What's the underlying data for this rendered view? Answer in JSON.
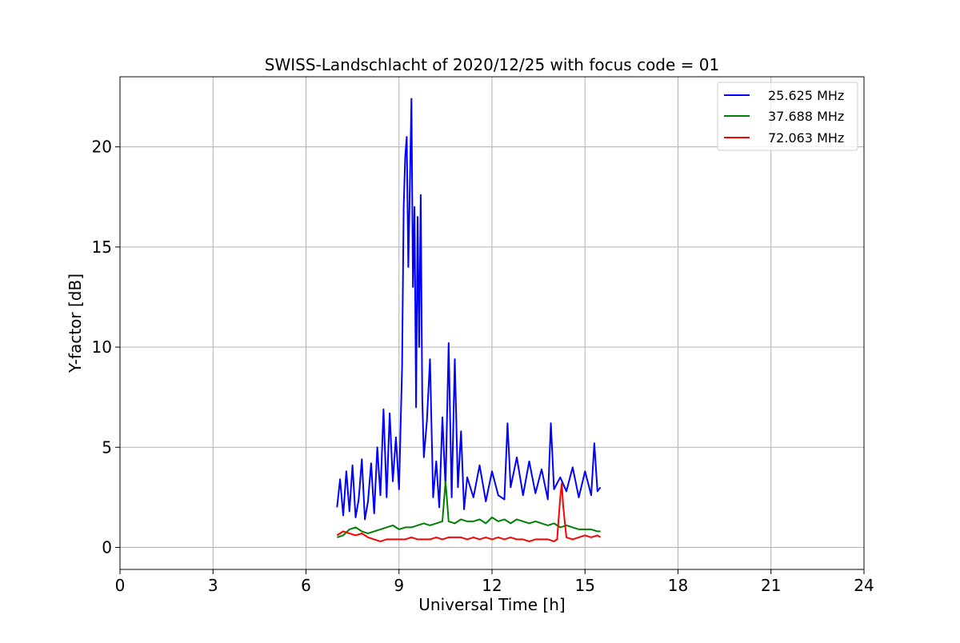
{
  "chart_data": {
    "type": "line",
    "title": "SWISS-Landschlacht of 2020/12/25 with focus code = 01",
    "xlabel": "Universal Time [h]",
    "ylabel": "Y-factor [dB]",
    "xlim": [
      0,
      24
    ],
    "ylim": [
      -1.1,
      23.5
    ],
    "xticks": [
      0,
      3,
      6,
      9,
      12,
      15,
      18,
      21,
      24
    ],
    "yticks": [
      0,
      5,
      10,
      15,
      20
    ],
    "grid": true,
    "legend_position": "top-right",
    "series": [
      {
        "name": "25.625 MHz",
        "color": "#0000ff",
        "x": [
          7.0,
          7.1,
          7.2,
          7.3,
          7.4,
          7.5,
          7.6,
          7.7,
          7.8,
          7.9,
          8.0,
          8.1,
          8.2,
          8.3,
          8.4,
          8.5,
          8.6,
          8.7,
          8.8,
          8.9,
          9.0,
          9.1,
          9.15,
          9.2,
          9.25,
          9.3,
          9.35,
          9.4,
          9.45,
          9.5,
          9.55,
          9.6,
          9.65,
          9.7,
          9.75,
          9.8,
          9.9,
          10.0,
          10.1,
          10.2,
          10.3,
          10.4,
          10.5,
          10.6,
          10.7,
          10.8,
          10.9,
          11.0,
          11.1,
          11.2,
          11.4,
          11.6,
          11.8,
          12.0,
          12.2,
          12.4,
          12.5,
          12.6,
          12.8,
          13.0,
          13.2,
          13.4,
          13.6,
          13.8,
          13.9,
          14.0,
          14.2,
          14.4,
          14.6,
          14.8,
          15.0,
          15.2,
          15.3,
          15.4,
          15.5
        ],
        "y": [
          2.0,
          3.4,
          1.6,
          3.8,
          1.8,
          4.1,
          1.5,
          2.4,
          4.4,
          1.4,
          2.3,
          4.2,
          1.7,
          5.0,
          2.6,
          6.9,
          2.5,
          6.7,
          3.3,
          5.5,
          2.9,
          9.0,
          17.0,
          19.5,
          20.5,
          14.0,
          18.0,
          22.4,
          13.0,
          17.0,
          7.0,
          16.5,
          10.0,
          17.6,
          7.5,
          4.5,
          6.3,
          9.4,
          2.5,
          4.3,
          2.0,
          6.5,
          3.0,
          10.2,
          2.5,
          9.4,
          3.0,
          5.8,
          1.9,
          3.5,
          2.5,
          4.1,
          2.3,
          3.8,
          2.6,
          2.4,
          6.2,
          3.0,
          4.5,
          2.6,
          4.3,
          2.7,
          3.9,
          2.4,
          6.2,
          2.9,
          3.5,
          2.8,
          4.0,
          2.5,
          3.8,
          2.6,
          5.2,
          2.8,
          3.0
        ]
      },
      {
        "name": "37.688 MHz",
        "color": "#008000",
        "x": [
          7.0,
          7.2,
          7.4,
          7.6,
          7.8,
          8.0,
          8.2,
          8.4,
          8.6,
          8.8,
          9.0,
          9.2,
          9.4,
          9.6,
          9.8,
          10.0,
          10.2,
          10.4,
          10.5,
          10.6,
          10.8,
          11.0,
          11.2,
          11.4,
          11.6,
          11.8,
          12.0,
          12.2,
          12.4,
          12.6,
          12.8,
          13.0,
          13.2,
          13.4,
          13.6,
          13.8,
          14.0,
          14.2,
          14.4,
          14.6,
          14.8,
          15.0,
          15.2,
          15.4,
          15.5
        ],
        "y": [
          0.5,
          0.6,
          0.9,
          1.0,
          0.8,
          0.7,
          0.8,
          0.9,
          1.0,
          1.1,
          0.9,
          1.0,
          1.0,
          1.1,
          1.2,
          1.1,
          1.2,
          1.3,
          3.3,
          1.3,
          1.2,
          1.4,
          1.3,
          1.3,
          1.4,
          1.2,
          1.5,
          1.3,
          1.4,
          1.2,
          1.4,
          1.3,
          1.2,
          1.3,
          1.2,
          1.1,
          1.2,
          1.0,
          1.1,
          1.0,
          0.9,
          0.9,
          0.9,
          0.8,
          0.8
        ]
      },
      {
        "name": "72.063 MHz",
        "color": "#ff0000",
        "x": [
          7.0,
          7.2,
          7.4,
          7.6,
          7.8,
          8.0,
          8.2,
          8.4,
          8.6,
          8.8,
          9.0,
          9.2,
          9.4,
          9.6,
          9.8,
          10.0,
          10.2,
          10.4,
          10.6,
          10.8,
          11.0,
          11.2,
          11.4,
          11.6,
          11.8,
          12.0,
          12.2,
          12.4,
          12.6,
          12.8,
          13.0,
          13.2,
          13.4,
          13.6,
          13.8,
          14.0,
          14.1,
          14.2,
          14.25,
          14.3,
          14.4,
          14.6,
          14.8,
          15.0,
          15.2,
          15.4,
          15.5
        ],
        "y": [
          0.6,
          0.8,
          0.7,
          0.6,
          0.7,
          0.5,
          0.4,
          0.3,
          0.4,
          0.4,
          0.4,
          0.4,
          0.5,
          0.4,
          0.4,
          0.4,
          0.5,
          0.4,
          0.5,
          0.5,
          0.5,
          0.4,
          0.5,
          0.4,
          0.5,
          0.4,
          0.5,
          0.4,
          0.5,
          0.4,
          0.4,
          0.3,
          0.4,
          0.4,
          0.4,
          0.3,
          0.4,
          2.5,
          3.2,
          2.0,
          0.5,
          0.4,
          0.5,
          0.6,
          0.5,
          0.6,
          0.5
        ]
      }
    ]
  }
}
